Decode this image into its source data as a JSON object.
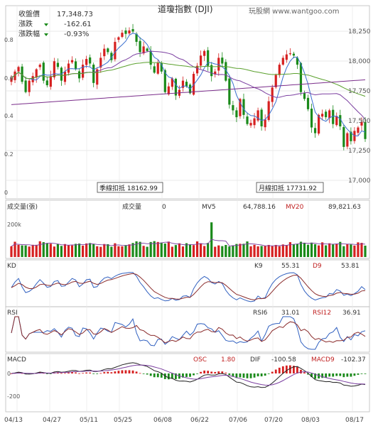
{
  "header": {
    "title": "道瓊指數 (DJI)",
    "watermark": "玩股網 www.wantgoo.com",
    "close_label": "收盤價",
    "close_value": "17,348.73",
    "change_label": "漲跌",
    "change_value": "-162.61",
    "pct_label": "漲跌幅",
    "pct_value": "-0.93%"
  },
  "price_panel": {
    "y_ticks": [
      "18,250",
      "18,000",
      "17,750",
      "17,500",
      "17,250",
      "17,000"
    ],
    "left_ticks": [
      "0.8",
      "0.6",
      "0.4",
      "0.2",
      "0"
    ],
    "quarter_label": "季線扣抵 18162.99",
    "month_label": "月線扣抵 17731.92"
  },
  "volume_panel": {
    "title": "成交量(張)",
    "vol_label": "成交量",
    "vol_value": "0",
    "mv5_label": "MV5",
    "mv5_value": "64,788.16",
    "mv20_label": "MV20",
    "mv20_value": "89,821.63",
    "y_tick": "200k"
  },
  "kd_panel": {
    "title": "KD",
    "k_label": "K9",
    "k_value": "55.31",
    "d_label": "D9",
    "d_value": "53.81"
  },
  "rsi_panel": {
    "title": "RSI",
    "rsi6_label": "RSI6",
    "rsi6_value": "31.01",
    "rsi12_label": "RSI12",
    "rsi12_value": "36.91"
  },
  "macd_panel": {
    "title": "MACD",
    "osc_label": "OSC",
    "osc_value": "1.80",
    "dif_label": "DIF",
    "dif_value": "-100.58",
    "macd_label": "MACD9",
    "macd_value": "-102.37",
    "y_ticks": [
      "0",
      "-200"
    ]
  },
  "x_axis": [
    "04/13",
    "04/27",
    "05/11",
    "05/25",
    "06/08",
    "06/22",
    "07/06",
    "07/20",
    "08/03",
    "08/17"
  ],
  "colors": {
    "up": "#d62020",
    "down": "#1a8a1a",
    "ma_purple": "#7b3fa0",
    "ma_green": "#5aa02c",
    "ma_blue": "#3a6fd0",
    "line_k": "#3060c0",
    "line_d": "#8a2b2b"
  },
  "chart_data": {
    "type": "candlestick",
    "title": "道瓊指數 (DJI)",
    "ylim": [
      16900,
      18380
    ],
    "close": [
      17880,
      17940,
      17980,
      17850,
      17760,
      17860,
      17900,
      17960,
      18000,
      17860,
      17820,
      17900,
      18030,
      17980,
      17860,
      17940,
      18010,
      18040,
      17960,
      17880,
      18000,
      18050,
      18010,
      17840,
      17960,
      18060,
      18140,
      18110,
      18040,
      18200,
      18240,
      18280,
      18270,
      18300,
      18290,
      18200,
      18110,
      18160,
      18120,
      18000,
      17930,
      18020,
      17940,
      17760,
      17810,
      17880,
      17730,
      17780,
      17860,
      17810,
      17750,
      17920,
      17990,
      18080,
      18120,
      17990,
      17900,
      17940,
      18060,
      18010,
      17860,
      17650,
      17600,
      17540,
      17700,
      17560,
      17480,
      17490,
      17530,
      17600,
      17460,
      17520,
      17680,
      17800,
      17910,
      18000,
      18060,
      18090,
      18100,
      18080,
      18000,
      17760,
      17700,
      17610,
      17450,
      17400,
      17560,
      17570,
      17540,
      17600,
      17480,
      17550,
      17460,
      17280,
      17400,
      17330,
      17420,
      17450,
      17500,
      17349
    ]
  }
}
